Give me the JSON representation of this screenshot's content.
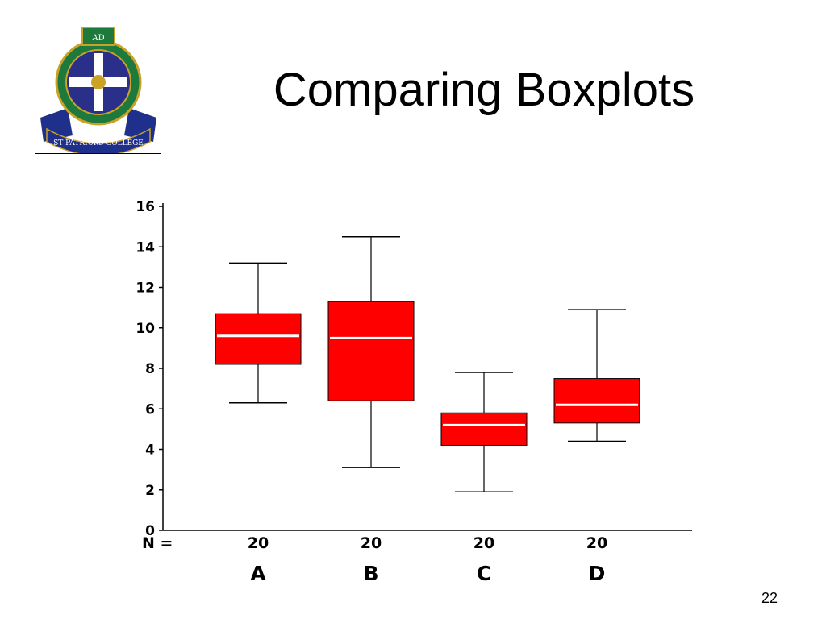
{
  "slide": {
    "title": "Comparing Boxplots",
    "number": "22",
    "logo": {
      "icon": "college-crest-icon",
      "banner_text": "ST PATRICKS COLLEGE",
      "top_text": "AD"
    }
  },
  "chart_data": {
    "type": "boxplot",
    "title": "",
    "xlabel": "",
    "ylabel": "",
    "ylim": [
      0,
      16
    ],
    "yticks": [
      0,
      2,
      4,
      6,
      8,
      10,
      12,
      14,
      16
    ],
    "grid": false,
    "legend": "none",
    "box_color": "#ff0000",
    "median_color": "#ffffff",
    "n_label": "N =",
    "categories": [
      "A",
      "B",
      "C",
      "D"
    ],
    "n_values": [
      "20",
      "20",
      "20",
      "20"
    ],
    "boxes": [
      {
        "category": "A",
        "min": 6.3,
        "q1": 8.2,
        "median": 9.6,
        "q3": 10.7,
        "max": 13.2
      },
      {
        "category": "B",
        "min": 3.1,
        "q1": 6.4,
        "median": 9.5,
        "q3": 11.3,
        "max": 14.5
      },
      {
        "category": "C",
        "min": 1.9,
        "q1": 4.2,
        "median": 5.2,
        "q3": 5.8,
        "max": 7.8
      },
      {
        "category": "D",
        "min": 4.4,
        "q1": 5.3,
        "median": 6.2,
        "q3": 7.5,
        "max": 10.9
      }
    ]
  }
}
